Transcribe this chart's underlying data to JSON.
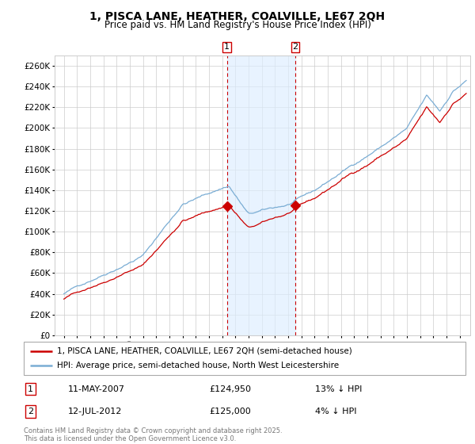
{
  "title": "1, PISCA LANE, HEATHER, COALVILLE, LE67 2QH",
  "subtitle": "Price paid vs. HM Land Registry's House Price Index (HPI)",
  "legend_label_red": "1, PISCA LANE, HEATHER, COALVILLE, LE67 2QH (semi-detached house)",
  "legend_label_blue": "HPI: Average price, semi-detached house, North West Leicestershire",
  "ylabel_ticks": [
    "£0",
    "£20K",
    "£40K",
    "£60K",
    "£80K",
    "£100K",
    "£120K",
    "£140K",
    "£160K",
    "£180K",
    "£200K",
    "£220K",
    "£240K",
    "£260K"
  ],
  "ytick_values": [
    0,
    20000,
    40000,
    60000,
    80000,
    100000,
    120000,
    140000,
    160000,
    180000,
    200000,
    220000,
    240000,
    260000
  ],
  "year_start": 1995,
  "year_end": 2025,
  "color_red": "#cc0000",
  "color_blue": "#7aadd4",
  "color_bg_band": "#ddeeff",
  "color_grid": "#cccccc",
  "sale1_date": 2007.36,
  "sale1_price": 124950,
  "sale1_label": "1",
  "sale2_date": 2012.53,
  "sale2_price": 125000,
  "sale2_label": "2",
  "ann1_date": "11-MAY-2007",
  "ann1_price": "£124,950",
  "ann1_hpi": "13% ↓ HPI",
  "ann2_date": "12-JUL-2012",
  "ann2_price": "£125,000",
  "ann2_hpi": "4% ↓ HPI",
  "footer": "Contains HM Land Registry data © Crown copyright and database right 2025.\nThis data is licensed under the Open Government Licence v3.0.",
  "title_fontsize": 10,
  "subtitle_fontsize": 8.5,
  "tick_fontsize": 7.5,
  "legend_fontsize": 7.5,
  "annotation_fontsize": 8
}
